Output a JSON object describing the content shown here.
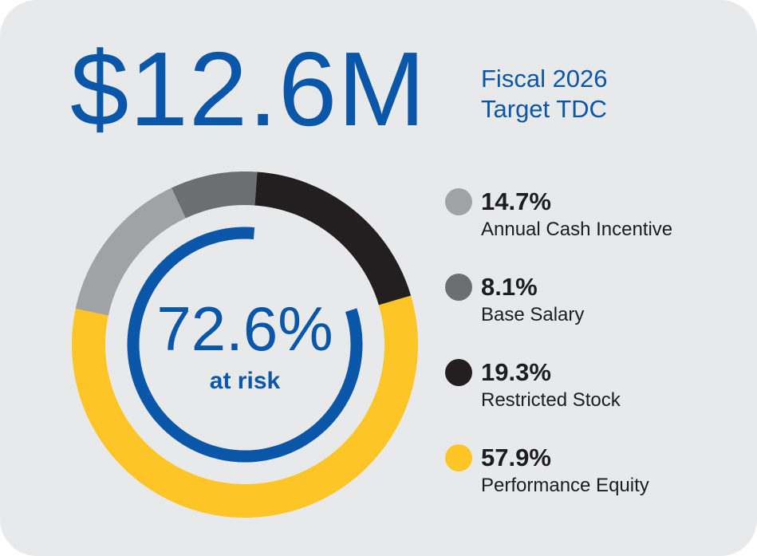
{
  "colors": {
    "background": "#e8e9ea",
    "blue": "#0a56a8",
    "text_dark": "#1d1d1f"
  },
  "headline": {
    "amount": "$12.6M",
    "subtitle_line1": "Fiscal 2026",
    "subtitle_line2": "Target TDC"
  },
  "chart_data": {
    "type": "pie",
    "style": "donut",
    "categories": [
      "Annual Cash Incentive",
      "Base Salary",
      "Restricted Stock",
      "Performance Equity"
    ],
    "values": [
      14.7,
      8.1,
      19.3,
      57.9
    ],
    "value_labels": [
      "14.7%",
      "8.1%",
      "19.3%",
      "57.9%"
    ],
    "colors": [
      "#a1a2a5",
      "#6d6e70",
      "#231f20",
      "#fdc526"
    ],
    "legend_position": "right",
    "center": {
      "value": "72.6%",
      "label": "at risk",
      "at_risk_fraction": 0.726,
      "color": "#0a56a8"
    }
  }
}
